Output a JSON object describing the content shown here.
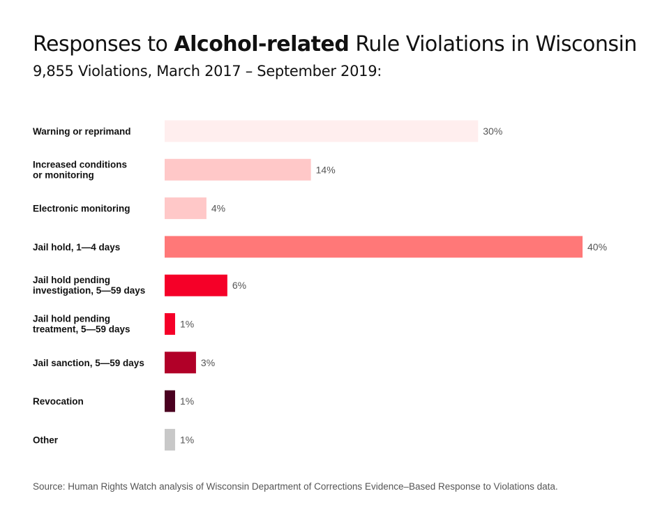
{
  "title": {
    "before": "Responses to ",
    "bold": "Alcohol-related",
    "after": " Rule Violations in Wisconsin"
  },
  "subtitle": "9,855 Violations, March 2017 – September 2019:",
  "source": "Source: Human Rights Watch analysis of Wisconsin Department of Corrections Evidence–Based Response to Violations data.",
  "chart_data": {
    "type": "bar",
    "orientation": "horizontal",
    "title": "Responses to Alcohol-related Rule Violations in Wisconsin",
    "subtitle": "9,855 Violations, March 2017 – September 2019:",
    "categories": [
      [
        "Warning or reprimand"
      ],
      [
        "Increased conditions",
        "or monitoring"
      ],
      [
        "Electronic monitoring"
      ],
      [
        "Jail hold, 1—4 days"
      ],
      [
        "Jail hold pending",
        "investigation, 5—59 days"
      ],
      [
        "Jail hold pending",
        "treatment, 5—59 days"
      ],
      [
        "Jail sanction, 5—59 days"
      ],
      [
        "Revocation"
      ],
      [
        "Other"
      ]
    ],
    "values": [
      30,
      14,
      4,
      40,
      6,
      1,
      3,
      1,
      1
    ],
    "labels": [
      "30%",
      "14%",
      "4%",
      "40%",
      "6%",
      "1%",
      "3%",
      "1%",
      "1%"
    ],
    "colors": [
      "#ffeeee",
      "#ffc8c8",
      "#ffc8c8",
      "#ff7878",
      "#f50028",
      "#f50028",
      "#b10028",
      "#4a0020",
      "#c8c8c8"
    ],
    "unit": "%",
    "grid": false,
    "legend": "none"
  }
}
